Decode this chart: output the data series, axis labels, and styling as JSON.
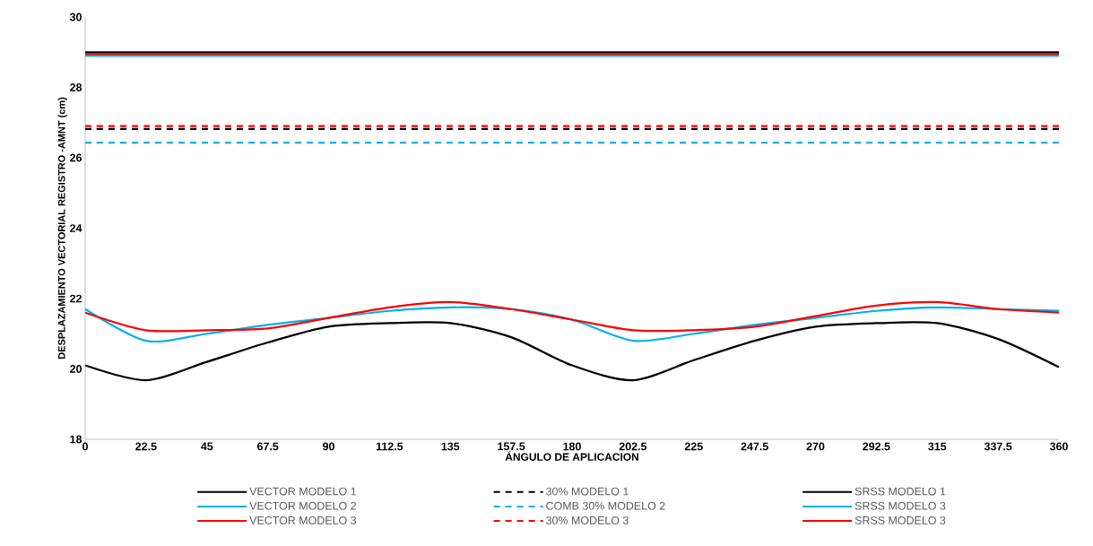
{
  "chart_data": {
    "type": "line",
    "xlabel": "ÁNGULO DE APLICACION",
    "ylabel": "DESPLAZAMIENTO VECTORIAL REGISTRO -AMNT (cm)",
    "x": [
      0,
      22.5,
      45,
      67.5,
      90,
      112.5,
      135,
      157.5,
      180,
      202.5,
      225,
      247.5,
      270,
      292.5,
      315,
      337.5,
      360
    ],
    "xlim": [
      0,
      360
    ],
    "xticks": [
      0,
      22.5,
      45,
      67.5,
      90,
      112.5,
      135,
      157.5,
      180,
      202.5,
      225,
      247.5,
      270,
      292.5,
      315,
      337.5,
      360
    ],
    "ylim": [
      18,
      30
    ],
    "yticks": [
      18,
      20,
      22,
      24,
      26,
      28,
      30
    ],
    "legend": "bottom",
    "grid": false,
    "series": [
      {
        "name": "VECTOR MODELO 1",
        "color": "#000000",
        "line_style": "solid",
        "values": [
          20.1,
          19.68,
          20.2,
          20.75,
          21.2,
          21.3,
          21.3,
          20.9,
          20.1,
          19.68,
          20.25,
          20.8,
          21.2,
          21.3,
          21.3,
          20.85,
          20.05
        ]
      },
      {
        "name": "30% MODELO 1",
        "color": "#000000",
        "line_style": "dashed",
        "values": [
          26.82,
          26.82,
          26.82,
          26.82,
          26.82,
          26.82,
          26.82,
          26.82,
          26.82,
          26.82,
          26.82,
          26.82,
          26.82,
          26.82,
          26.82,
          26.82,
          26.82
        ]
      },
      {
        "name": "SRSS MODELO 1",
        "color": "#000000",
        "line_style": "solid",
        "values": [
          29.0,
          29.0,
          29.0,
          29.0,
          29.0,
          29.0,
          29.0,
          29.0,
          29.0,
          29.0,
          29.0,
          29.0,
          29.0,
          29.0,
          29.0,
          29.0,
          29.0
        ]
      },
      {
        "name": "VECTOR MODELO 2",
        "color": "#00b0f0",
        "line_style": "solid",
        "values": [
          21.7,
          20.8,
          21.0,
          21.25,
          21.45,
          21.65,
          21.75,
          21.7,
          21.4,
          20.8,
          21.0,
          21.25,
          21.45,
          21.65,
          21.75,
          21.7,
          21.65
        ]
      },
      {
        "name": "COMB 30% MODELO 2",
        "color": "#00b0f0",
        "line_style": "dashed",
        "values": [
          26.43,
          26.43,
          26.43,
          26.43,
          26.43,
          26.43,
          26.43,
          26.43,
          26.43,
          26.43,
          26.43,
          26.43,
          26.43,
          26.43,
          26.43,
          26.43,
          26.43
        ]
      },
      {
        "name": "SRSS MODELO 3",
        "color": "#00b0f0",
        "line_style": "solid",
        "values": [
          28.9,
          28.9,
          28.9,
          28.9,
          28.9,
          28.9,
          28.9,
          28.9,
          28.9,
          28.9,
          28.9,
          28.9,
          28.9,
          28.9,
          28.9,
          28.9,
          28.9
        ]
      },
      {
        "name": "VECTOR MODELO 3",
        "color": "#ff0000",
        "line_style": "solid",
        "values": [
          21.6,
          21.1,
          21.1,
          21.15,
          21.45,
          21.75,
          21.9,
          21.7,
          21.4,
          21.1,
          21.1,
          21.2,
          21.5,
          21.8,
          21.9,
          21.7,
          21.6
        ]
      },
      {
        "name": "30% MODELO 3",
        "color": "#ff0000",
        "line_style": "dashed",
        "values": [
          26.9,
          26.9,
          26.9,
          26.9,
          26.9,
          26.9,
          26.9,
          26.9,
          26.9,
          26.9,
          26.9,
          26.9,
          26.9,
          26.9,
          26.9,
          26.9,
          26.9
        ]
      },
      {
        "name": "SRSS MODELO 3",
        "color": "#ff0000",
        "line_style": "solid",
        "values": [
          28.95,
          28.95,
          28.95,
          28.95,
          28.95,
          28.95,
          28.95,
          28.95,
          28.95,
          28.95,
          28.95,
          28.95,
          28.95,
          28.95,
          28.95,
          28.95,
          28.95
        ]
      }
    ]
  }
}
